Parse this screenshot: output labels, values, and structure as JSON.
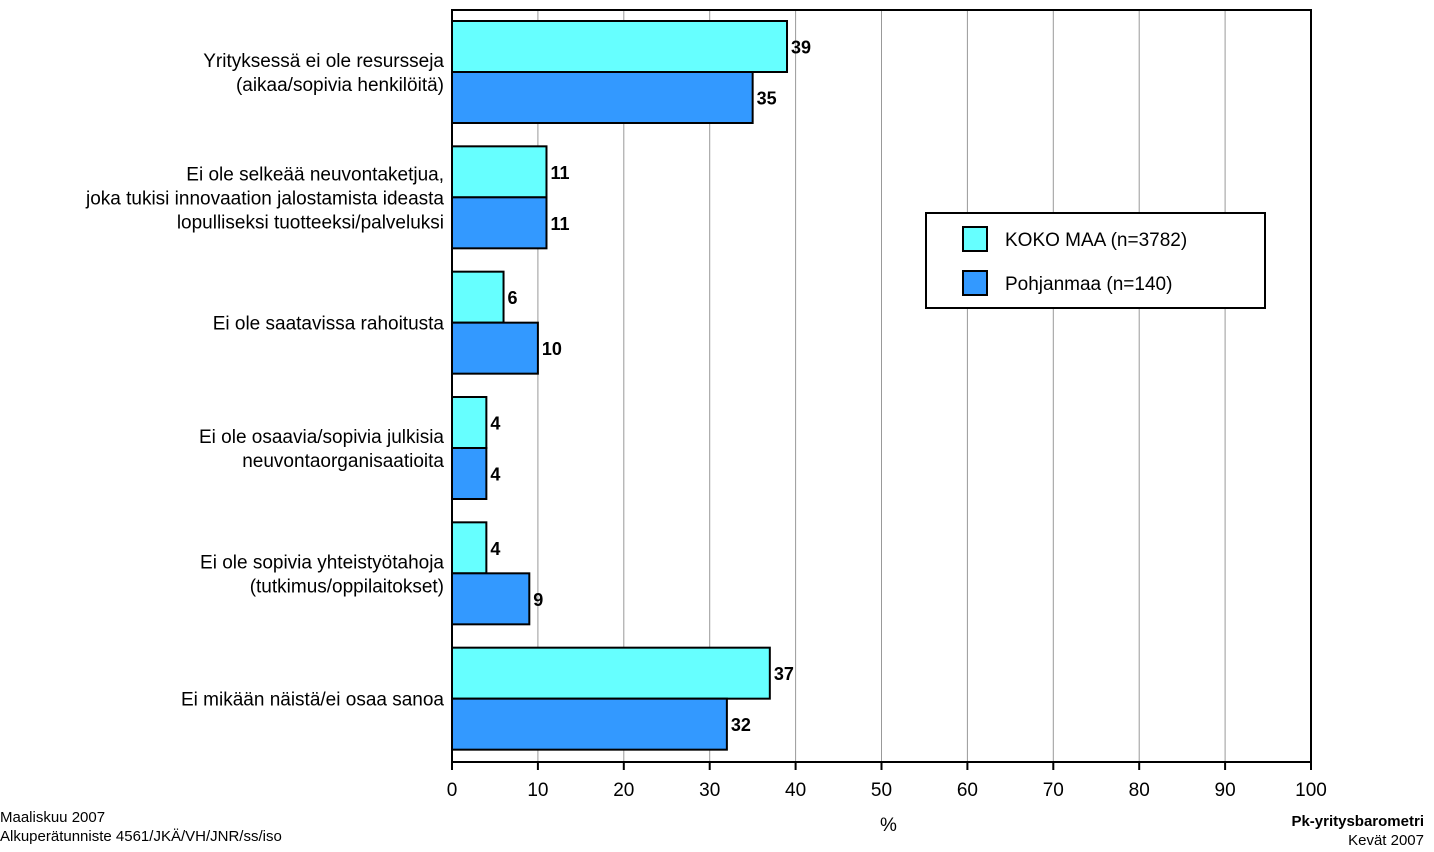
{
  "chart_data": {
    "type": "bar",
    "orientation": "horizontal",
    "categories": [
      [
        "Yrityksessä ei ole resursseja",
        "(aikaa/sopivia henkilöitä)"
      ],
      [
        "Ei ole selkeää neuvontaketjua,",
        "joka tukisi innovaation jalostamista ideasta",
        "lopulliseksi tuotteeksi/palveluksi"
      ],
      [
        "Ei ole saatavissa rahoitusta"
      ],
      [
        "Ei ole osaavia/sopivia julkisia",
        "neuvontaorganisaatioita"
      ],
      [
        "Ei ole sopivia yhteistyötahoja",
        "(tutkimus/oppilaitokset)"
      ],
      [
        "Ei mikään näistä/ei osaa sanoa"
      ]
    ],
    "series": [
      {
        "name": "KOKO MAA (n=3782)",
        "color": "#66ffff",
        "values": [
          39,
          11,
          6,
          4,
          4,
          37
        ]
      },
      {
        "name": "Pohjanmaa (n=140)",
        "color": "#3399ff",
        "values": [
          35,
          11,
          10,
          4,
          9,
          32
        ]
      }
    ],
    "xlabel": "%",
    "xlim": [
      0,
      100
    ],
    "xticks": [
      0,
      10,
      20,
      30,
      40,
      50,
      60,
      70,
      80,
      90,
      100
    ],
    "grid": true,
    "legend_position": "right"
  },
  "footer": {
    "left_line1": "Maaliskuu 2007",
    "left_line2": "Alkuperätunniste 4561/JKÄ/VH/JNR/ss/iso",
    "right_line1": "Pk-yritysbarometri",
    "right_line2": "Kevät 2007"
  }
}
